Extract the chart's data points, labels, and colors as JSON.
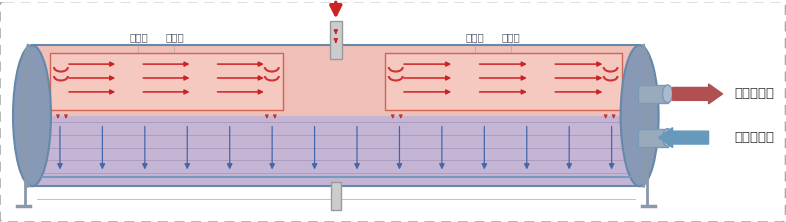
{
  "background_color": "#ffffff",
  "border_color": "#aaaaaa",
  "fig_width": 7.86,
  "fig_height": 2.22,
  "dpi": 100,
  "label_outlet": "冷却水出口",
  "label_inlet": "冷却水进口",
  "label_filter": "过滤网",
  "arrow_red": "#cc2222",
  "arrow_blue": "#4466aa",
  "arrow_outlet_color": "#b05050",
  "arrow_inlet_color": "#6699bb",
  "support_color": "#8899aa",
  "text_color": "#333333",
  "filter_label_color": "#555566",
  "upper_fill": "#f0c0b8",
  "lower_fill": "#c5b5d5",
  "tube_line_color": "#9988aa",
  "vessel_edge": "#6688aa",
  "cap_face": "#8899b5",
  "nozzle_face": "#99aabd",
  "nozzle_edge": "#7799bb",
  "pipe_face": "#cccccc",
  "pipe_edge": "#999999",
  "hbar_color": "#7799bb",
  "box_edge": "#cc6655",
  "box_face": "#f5c8c0",
  "coil_color": "#cc3333",
  "flame_color": "#cc3333"
}
